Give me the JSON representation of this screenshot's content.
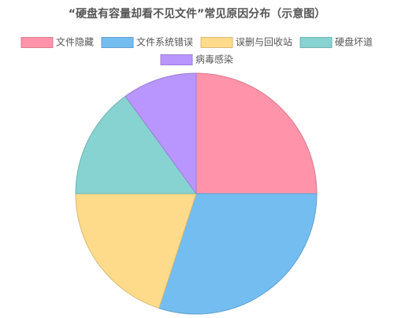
{
  "chart_data": {
    "type": "pie",
    "title": "“硬盘有容量却看不见文件”常见原因分布（示意图）",
    "categories": [
      "文件隐藏",
      "文件系统错误",
      "误删与回收站",
      "硬盘坏道",
      "病毒感染"
    ],
    "values": [
      25,
      30,
      20,
      15,
      10
    ],
    "colors": [
      "#ff93a9",
      "#74bdf0",
      "#fedb8b",
      "#86d3d1",
      "#b995fe"
    ],
    "legend": "top"
  }
}
